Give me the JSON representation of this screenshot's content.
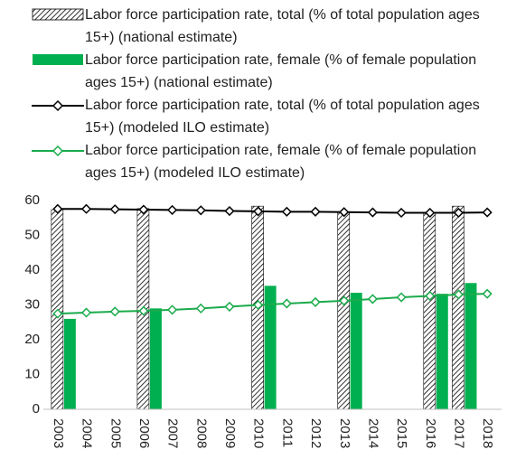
{
  "chart_data": {
    "type": "combo",
    "categories": [
      "2003",
      "2004",
      "2005",
      "2006",
      "2007",
      "2008",
      "2009",
      "2010",
      "2011",
      "2012",
      "2013",
      "2014",
      "2015",
      "2016",
      "2017",
      "2018"
    ],
    "ylim": [
      0,
      60
    ],
    "yticks": [
      0,
      10,
      20,
      30,
      40,
      50,
      60
    ],
    "grid": false,
    "legend": "top",
    "series": [
      {
        "name": "Labor force participation rate, total (% of total population ages 15+) (national estimate)",
        "type": "bar",
        "pattern": "hatch",
        "color": "#000000",
        "values": [
          57.4,
          null,
          null,
          57.7,
          null,
          null,
          null,
          58.4,
          null,
          null,
          56.8,
          null,
          null,
          56.4,
          58.4,
          null
        ]
      },
      {
        "name": "Labor force participation rate, female (% of female population ages 15+) (national estimate)",
        "type": "bar",
        "color": "#00b050",
        "values": [
          26.0,
          null,
          null,
          29.0,
          null,
          null,
          null,
          35.5,
          null,
          null,
          33.5,
          null,
          null,
          33.2,
          36.3,
          null
        ]
      },
      {
        "name": "Labor force participation rate, total (% of total population ages 15+) (modeled ILO estimate)",
        "type": "line",
        "color": "#000000",
        "values": [
          57.6,
          57.6,
          57.5,
          57.4,
          57.3,
          57.2,
          57.0,
          56.9,
          56.8,
          56.8,
          56.7,
          56.6,
          56.5,
          56.5,
          56.5,
          56.6
        ]
      },
      {
        "name": "Labor force participation rate, female (% of female population ages 15+) (modeled ILO estimate)",
        "type": "line",
        "color": "#1aab4b",
        "values": [
          27.5,
          27.8,
          28.1,
          28.3,
          28.6,
          29.0,
          29.5,
          30.0,
          30.4,
          30.8,
          31.2,
          31.7,
          32.2,
          32.6,
          33.0,
          33.2
        ]
      }
    ]
  }
}
